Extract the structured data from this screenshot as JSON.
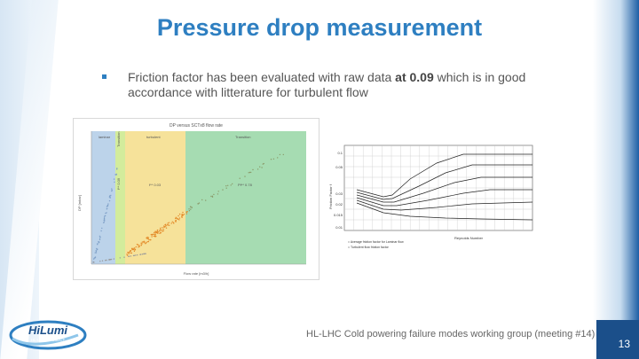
{
  "slide": {
    "title": "Pressure drop measurement",
    "bullet": {
      "text_before": "Friction factor has been evaluated with raw data ",
      "emphasis": "at 0.09",
      "text_after": " which is in good accordance with litterature for turbulent flow"
    },
    "footer": "HL-LHC Cold powering failure modes working group (meeting #14)",
    "page_number": "13",
    "logo": {
      "name": "HiLumi",
      "subtitle": "HL-LHC PROJECT"
    },
    "colors": {
      "title": "#2e7fc1",
      "band": "#1b4f8a",
      "laminar": "#bcd3ea",
      "transition": "#d3ec9c",
      "turbulent_low": "#f6e29a",
      "turbulent_high": "#a6dcb2"
    }
  },
  "left_chart": {
    "title": "DP versus SCTx8 flow rate",
    "regions": [
      "laminar",
      "Transition",
      "turbulent",
      "Transition"
    ],
    "annotations": [
      "f** 0.09",
      "f** 0.03",
      "Pf** 0.78"
    ],
    "xlabel": "Flow rate [m3/h]",
    "ylabel": "DP [mbar]"
  },
  "right_chart": {
    "title": "Moody diagram",
    "xlabel": "Reynolds Number",
    "ylabel": "Friction Factor f",
    "y_ticks": [
      "0.1",
      "0.05",
      "0.03",
      "0.02",
      "0.015",
      "0.01"
    ],
    "legend": [
      "= Average friction factor for Laminar flow",
      "= Turbulent flow friction factor"
    ]
  }
}
